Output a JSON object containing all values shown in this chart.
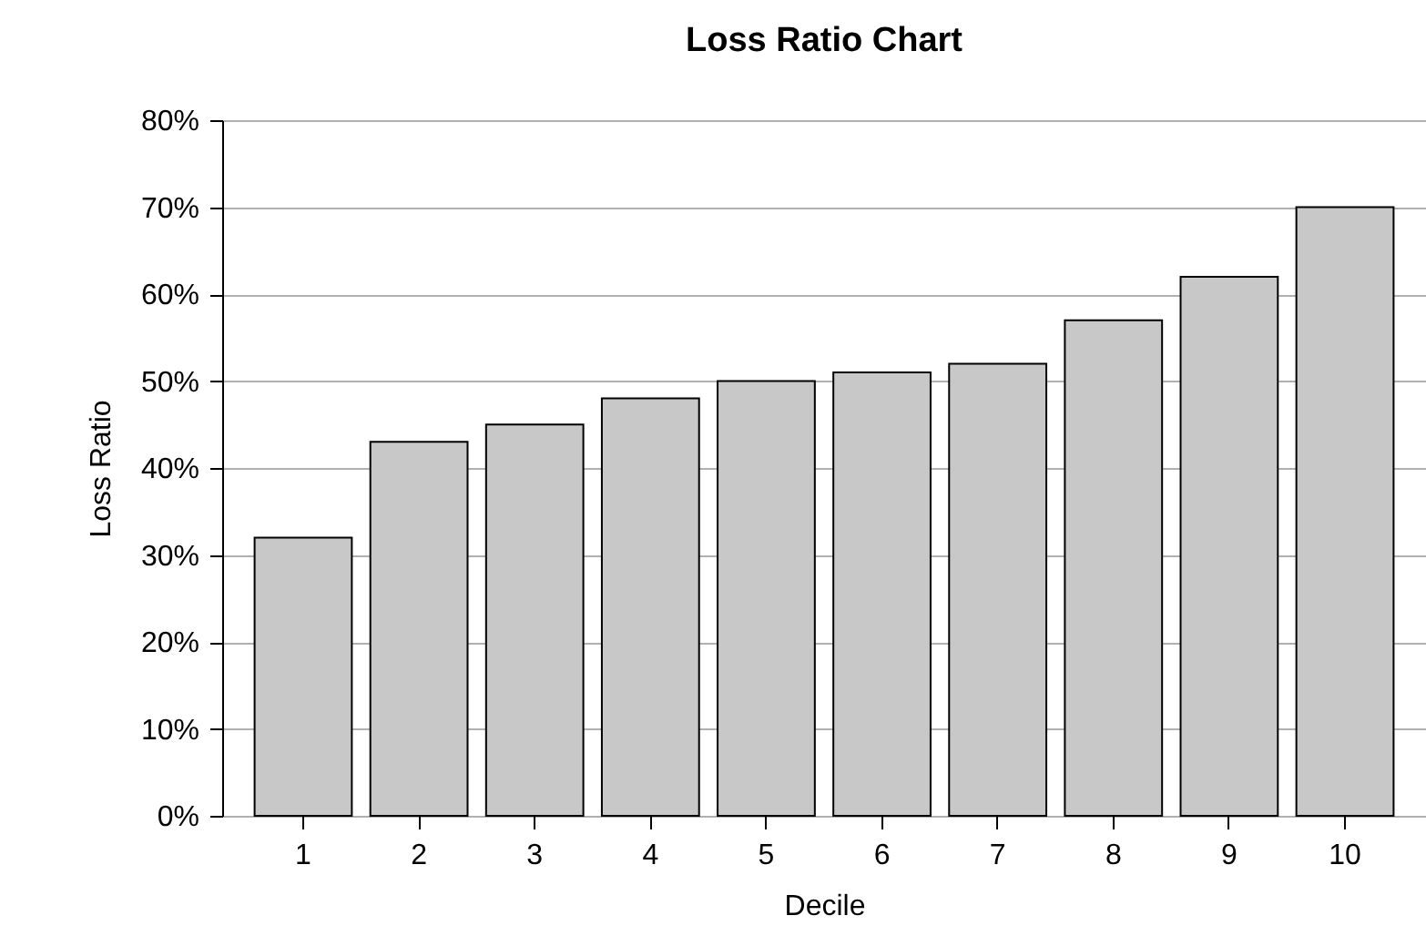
{
  "chart_data": {
    "type": "bar",
    "title": "Loss Ratio Chart",
    "xlabel": "Decile",
    "ylabel": "Loss Ratio",
    "categories": [
      "1",
      "2",
      "3",
      "4",
      "5",
      "6",
      "7",
      "8",
      "9",
      "10"
    ],
    "values": [
      32,
      43,
      45,
      48,
      50,
      51,
      52,
      57,
      62,
      70
    ],
    "color": "#c8c8c8",
    "ylim": [
      0,
      80
    ],
    "yticks": [
      {
        "value": 0,
        "label": "0%"
      },
      {
        "value": 10,
        "label": "10%"
      },
      {
        "value": 20,
        "label": "20%"
      },
      {
        "value": 30,
        "label": "30%"
      },
      {
        "value": 40,
        "label": "40%"
      },
      {
        "value": 50,
        "label": "50%"
      },
      {
        "value": 60,
        "label": "60%"
      },
      {
        "value": 70,
        "label": "70%"
      },
      {
        "value": 80,
        "label": "80%"
      }
    ],
    "grid": "y"
  }
}
